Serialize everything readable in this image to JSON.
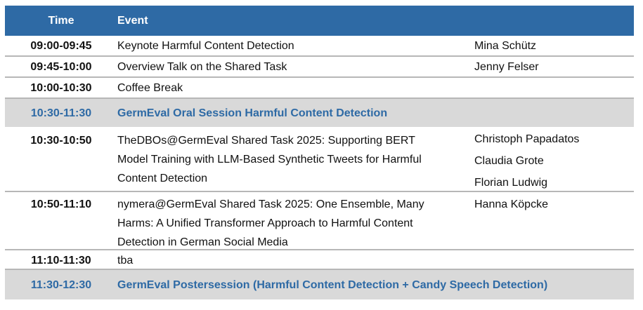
{
  "header": {
    "time_label": "Time",
    "event_label": "Event"
  },
  "rows": [
    {
      "time": "09:00-09:45",
      "event": "Keynote Harmful Content Detection",
      "speakers": [
        "Mina Schütz"
      ]
    },
    {
      "time": "09:45-10:00",
      "event": "Overview Talk on the Shared Task",
      "speakers": [
        "Jenny Felser"
      ]
    },
    {
      "time": "10:00-10:30",
      "event": "Coffee Break",
      "speakers": []
    },
    {
      "time": "10:30-11:30",
      "event": "GermEval Oral Session Harmful Content Detection",
      "session": true
    },
    {
      "time": "10:30-10:50",
      "event_lines": [
        "TheDBOs@GermEval Shared Task 2025: Supporting BERT",
        "Model Training with LLM-Based Synthetic Tweets for Harmful",
        "Content Detection"
      ],
      "speakers": [
        "Christoph Papadatos",
        "Claudia Grote",
        "Florian Ludwig"
      ]
    },
    {
      "time": "10:50-11:10",
      "event_lines": [
        "nymera@GermEval Shared Task 2025: One Ensemble, Many",
        "Harms: A Unified Transformer Approach to Harmful Content",
        "Detection in German  Social Media"
      ],
      "speakers": [
        "Hanna Köpcke"
      ]
    },
    {
      "time": "11:10-11:30",
      "event": "tba",
      "speakers": []
    },
    {
      "time": "11:30-12:30",
      "event": "GermEval Postersession (Harmful Content Detection + Candy Speech Detection)",
      "session": true
    }
  ],
  "colors": {
    "header_bg": "#2e6aa5",
    "session_bg": "#d9d9d9",
    "session_text": "#2e6aa5"
  }
}
